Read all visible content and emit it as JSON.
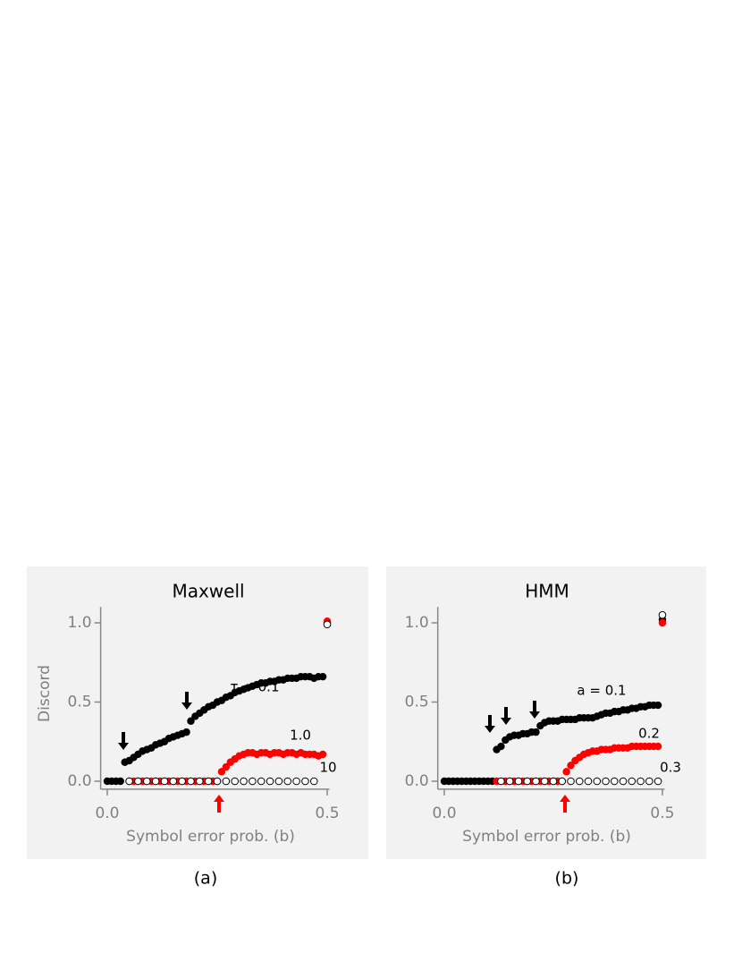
{
  "chart_data": [
    {
      "type": "scatter",
      "title": "Maxwell",
      "caption": "(a)",
      "x_label": "Symbol error prob.  (b)",
      "y_label": "Discord",
      "xlim": [
        -0.015,
        0.505
      ],
      "ylim": [
        -0.05,
        1.1
      ],
      "xticks": [
        {
          "value": 0,
          "label": "0.0"
        },
        0.5
      ],
      "yticks": [
        {
          "value": 0,
          "label": "0.0"
        },
        0.5,
        {
          "value": 1,
          "label": "1.0"
        }
      ],
      "series": [
        {
          "name": "τ = 0.1",
          "color": "#000000",
          "x": [
            0,
            0.01,
            0.02,
            0.03,
            0.04,
            0.05,
            0.06,
            0.07,
            0.08,
            0.09,
            0.1,
            0.11,
            0.12,
            0.13,
            0.14,
            0.15,
            0.16,
            0.17,
            0.18,
            0.19,
            0.2,
            0.21,
            0.22,
            0.23,
            0.24,
            0.25,
            0.26,
            0.27,
            0.28,
            0.29,
            0.3,
            0.31,
            0.32,
            0.33,
            0.34,
            0.35,
            0.36,
            0.37,
            0.38,
            0.39,
            0.4,
            0.41,
            0.42,
            0.43,
            0.44,
            0.45,
            0.46,
            0.47,
            0.48,
            0.49,
            0.5
          ],
          "values": [
            0,
            0,
            0,
            0,
            0.12,
            0.13,
            0.15,
            0.17,
            0.19,
            0.2,
            0.21,
            0.23,
            0.24,
            0.25,
            0.27,
            0.28,
            0.29,
            0.3,
            0.31,
            0.38,
            0.41,
            0.43,
            0.45,
            0.47,
            0.48,
            0.5,
            0.51,
            0.53,
            0.54,
            0.56,
            0.57,
            0.58,
            0.59,
            0.6,
            0.61,
            0.62,
            0.62,
            0.63,
            0.63,
            0.64,
            0.64,
            0.65,
            0.65,
            0.65,
            0.66,
            0.66,
            0.66,
            0.65,
            0.66,
            0.66,
            1.0
          ]
        },
        {
          "name": "1.0",
          "color": "#ff0000",
          "x": [
            0.05,
            0.06,
            0.07,
            0.08,
            0.09,
            0.1,
            0.11,
            0.12,
            0.13,
            0.14,
            0.15,
            0.16,
            0.17,
            0.18,
            0.19,
            0.2,
            0.21,
            0.22,
            0.23,
            0.24,
            0.25,
            0.26,
            0.27,
            0.28,
            0.29,
            0.3,
            0.31,
            0.32,
            0.33,
            0.34,
            0.35,
            0.36,
            0.37,
            0.38,
            0.39,
            0.4,
            0.41,
            0.42,
            0.43,
            0.44,
            0.45,
            0.46,
            0.47,
            0.48,
            0.49,
            0.5
          ],
          "values": [
            0,
            0,
            0,
            0,
            0,
            0,
            0,
            0,
            0,
            0,
            0,
            0,
            0,
            0,
            0,
            0,
            0,
            0,
            0,
            0,
            0,
            0.06,
            0.09,
            0.12,
            0.14,
            0.16,
            0.17,
            0.18,
            0.18,
            0.17,
            0.18,
            0.18,
            0.17,
            0.18,
            0.18,
            0.17,
            0.18,
            0.18,
            0.17,
            0.18,
            0.17,
            0.17,
            0.17,
            0.16,
            0.17,
            1.01
          ]
        },
        {
          "name": "10",
          "color": "#ffffff",
          "x": [
            0.05,
            0.07,
            0.09,
            0.11,
            0.13,
            0.15,
            0.17,
            0.19,
            0.21,
            0.23,
            0.25,
            0.27,
            0.29,
            0.31,
            0.33,
            0.35,
            0.37,
            0.39,
            0.41,
            0.43,
            0.45,
            0.47,
            0.5
          ],
          "values": [
            0,
            0,
            0,
            0,
            0,
            0,
            0,
            0,
            0,
            0,
            0,
            0,
            0,
            0,
            0,
            0,
            0,
            0,
            0,
            0,
            0,
            0,
            0.99
          ]
        }
      ]
    },
    {
      "type": "scatter",
      "title": "HMM",
      "caption": "(b)",
      "x_label": "Symbol error prob.  (b)",
      "xlim": [
        -0.015,
        0.505
      ],
      "ylim": [
        -0.05,
        1.1
      ],
      "xticks": [
        {
          "value": 0,
          "label": "0.0"
        },
        0.5
      ],
      "yticks": [
        {
          "value": 0,
          "label": "0.0"
        },
        0.5,
        {
          "value": 1,
          "label": "1.0"
        }
      ],
      "series": [
        {
          "name": "a = 0.1",
          "color": "#000000",
          "x": [
            0,
            0.01,
            0.02,
            0.03,
            0.04,
            0.05,
            0.06,
            0.07,
            0.08,
            0.09,
            0.1,
            0.11,
            0.12,
            0.13,
            0.14,
            0.15,
            0.16,
            0.17,
            0.18,
            0.19,
            0.2,
            0.21,
            0.22,
            0.23,
            0.24,
            0.25,
            0.26,
            0.27,
            0.28,
            0.29,
            0.3,
            0.31,
            0.32,
            0.33,
            0.34,
            0.35,
            0.36,
            0.37,
            0.38,
            0.39,
            0.4,
            0.41,
            0.42,
            0.43,
            0.44,
            0.45,
            0.46,
            0.47,
            0.48,
            0.49,
            0.5
          ],
          "values": [
            0,
            0,
            0,
            0,
            0,
            0,
            0,
            0,
            0,
            0,
            0,
            0,
            0.2,
            0.22,
            0.26,
            0.28,
            0.29,
            0.29,
            0.3,
            0.3,
            0.31,
            0.31,
            0.35,
            0.37,
            0.38,
            0.38,
            0.38,
            0.39,
            0.39,
            0.39,
            0.39,
            0.4,
            0.4,
            0.4,
            0.4,
            0.41,
            0.42,
            0.43,
            0.43,
            0.44,
            0.44,
            0.45,
            0.45,
            0.46,
            0.46,
            0.47,
            0.47,
            0.48,
            0.48,
            0.48,
            1.02
          ]
        },
        {
          "name": "0.2",
          "color": "#ff0000",
          "x": [
            0.12,
            0.13,
            0.14,
            0.15,
            0.16,
            0.17,
            0.18,
            0.19,
            0.2,
            0.21,
            0.22,
            0.23,
            0.24,
            0.25,
            0.26,
            0.27,
            0.28,
            0.29,
            0.3,
            0.31,
            0.32,
            0.33,
            0.34,
            0.35,
            0.36,
            0.37,
            0.38,
            0.39,
            0.4,
            0.41,
            0.42,
            0.43,
            0.44,
            0.45,
            0.46,
            0.47,
            0.48,
            0.49,
            0.5
          ],
          "values": [
            0,
            0,
            0,
            0,
            0,
            0,
            0,
            0,
            0,
            0,
            0,
            0,
            0,
            0,
            0,
            0,
            0.06,
            0.1,
            0.13,
            0.15,
            0.17,
            0.18,
            0.19,
            0.19,
            0.2,
            0.2,
            0.2,
            0.21,
            0.21,
            0.21,
            0.21,
            0.22,
            0.22,
            0.22,
            0.22,
            0.22,
            0.22,
            0.22,
            1.0
          ]
        },
        {
          "name": "0.3",
          "color": "#ffffff",
          "x": [
            0.13,
            0.15,
            0.17,
            0.19,
            0.21,
            0.23,
            0.25,
            0.27,
            0.29,
            0.31,
            0.33,
            0.35,
            0.37,
            0.39,
            0.41,
            0.43,
            0.45,
            0.47,
            0.49,
            0.5
          ],
          "values": [
            0,
            0,
            0,
            0,
            0,
            0,
            0,
            0,
            0,
            0,
            0,
            0,
            0,
            0,
            0,
            0,
            0,
            0,
            0,
            1.05
          ]
        }
      ]
    }
  ]
}
